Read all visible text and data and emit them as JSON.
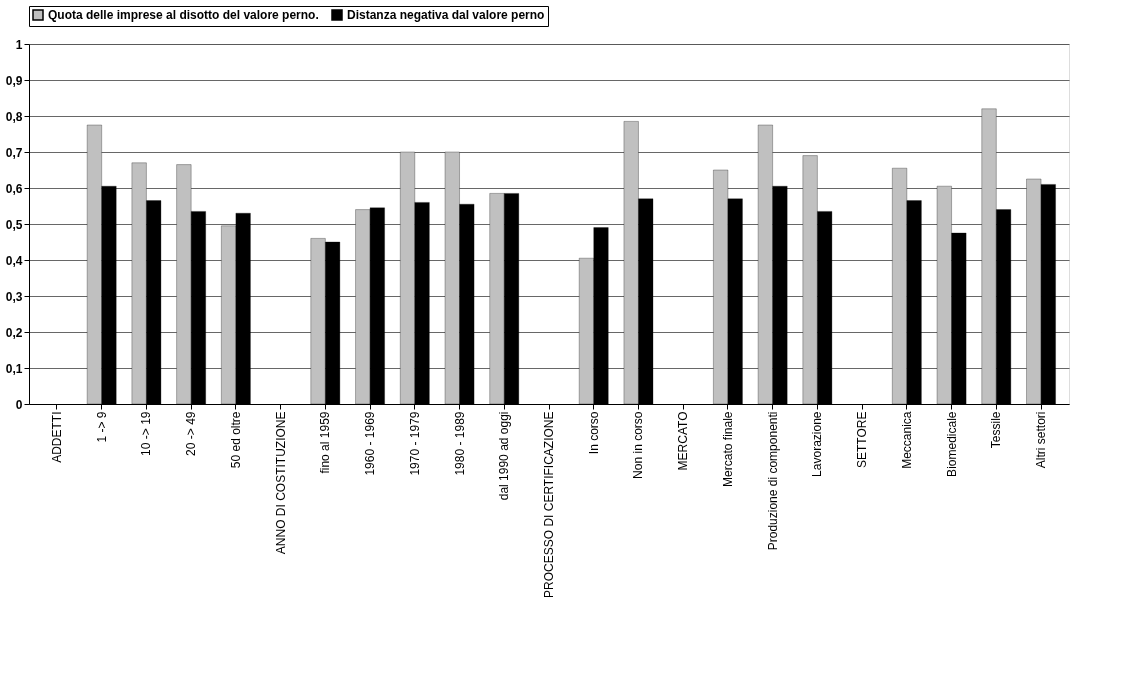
{
  "chart_data": {
    "type": "bar",
    "categories": [
      "ADDETTI",
      "1 -> 9",
      "10 -> 19",
      "20 -> 49",
      "50 ed oltre",
      "ANNO DI COSTITUZIONE",
      "fino al 1959",
      "1960 - 1969",
      "1970 - 1979",
      "1980 - 1989",
      "dal 1990 ad oggi",
      "PROCESSO DI CERTIFICAZIONE",
      "In corso",
      "Non in corso",
      "MERCATO",
      "Mercato finale",
      "Produzione di componenti",
      "Lavorazione",
      "SETTORE",
      "Meccanica",
      "Biomedicale",
      "Tessile",
      "Altri settori"
    ],
    "series": [
      {
        "name": "Quota delle imprese al disotto del valore perno.",
        "color": "#c0c0c0",
        "values": [
          null,
          0.775,
          0.67,
          0.665,
          0.495,
          null,
          0.46,
          0.54,
          0.7,
          0.7,
          0.585,
          null,
          0.405,
          0.785,
          null,
          0.65,
          0.775,
          0.69,
          null,
          0.655,
          0.605,
          0.82,
          0.625
        ]
      },
      {
        "name": "Distanza negativa dal valore perno",
        "color": "#000000",
        "values": [
          null,
          0.605,
          0.565,
          0.535,
          0.53,
          null,
          0.45,
          0.545,
          0.56,
          0.555,
          0.585,
          null,
          0.49,
          0.57,
          null,
          0.57,
          0.605,
          0.535,
          null,
          0.565,
          0.475,
          0.54,
          0.61
        ]
      }
    ],
    "ylim": [
      0,
      1
    ],
    "yticks": [
      {
        "value": 0,
        "label": "0"
      },
      {
        "value": 0.1,
        "label": "0,1"
      },
      {
        "value": 0.2,
        "label": "0,2"
      },
      {
        "value": 0.3,
        "label": "0,3"
      },
      {
        "value": 0.4,
        "label": "0,4"
      },
      {
        "value": 0.5,
        "label": "0,5"
      },
      {
        "value": 0.6,
        "label": "0,6"
      },
      {
        "value": 0.7,
        "label": "0,7"
      },
      {
        "value": 0.8,
        "label": "0,8"
      },
      {
        "value": 0.9,
        "label": "0,9"
      },
      {
        "value": 1,
        "label": "1"
      }
    ],
    "grid": "y",
    "legend": "top"
  }
}
